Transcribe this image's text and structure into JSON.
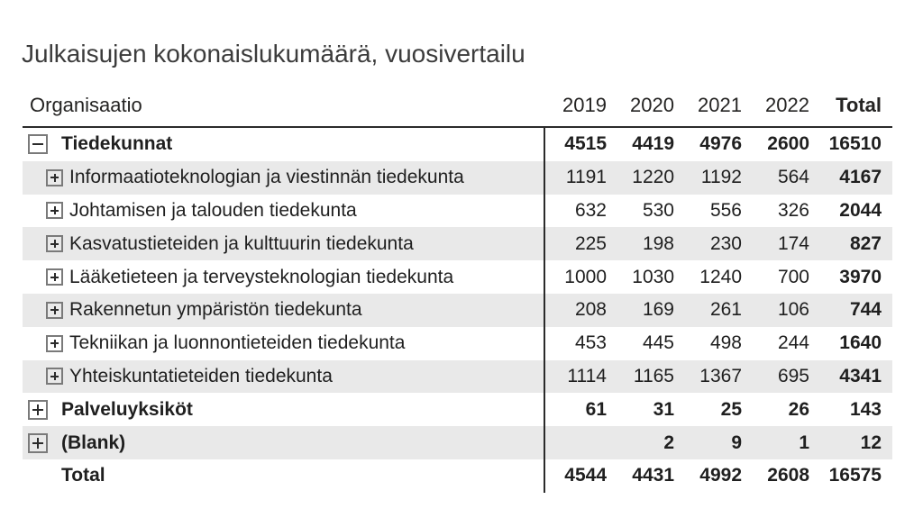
{
  "title": "Julkaisujen kokonaislukumäärä, vuosivertailu",
  "table": {
    "row_header": "Organisaatio",
    "columns": [
      "2019",
      "2020",
      "2021",
      "2022",
      "Total"
    ],
    "rows": [
      {
        "label": "Tiedekunnat",
        "level": 1,
        "icon": "minus",
        "bold": true,
        "values": [
          "4515",
          "4419",
          "4976",
          "2600",
          "16510"
        ]
      },
      {
        "label": "Informaatioteknologian ja viestinnän tiedekunta",
        "level": 2,
        "icon": "plus",
        "bold": false,
        "values": [
          "1191",
          "1220",
          "1192",
          "564",
          "4167"
        ]
      },
      {
        "label": "Johtamisen ja talouden tiedekunta",
        "level": 2,
        "icon": "plus",
        "bold": false,
        "values": [
          "632",
          "530",
          "556",
          "326",
          "2044"
        ]
      },
      {
        "label": "Kasvatustieteiden ja kulttuurin tiedekunta",
        "level": 2,
        "icon": "plus",
        "bold": false,
        "values": [
          "225",
          "198",
          "230",
          "174",
          "827"
        ]
      },
      {
        "label": "Lääketieteen ja terveysteknologian tiedekunta",
        "level": 2,
        "icon": "plus",
        "bold": false,
        "values": [
          "1000",
          "1030",
          "1240",
          "700",
          "3970"
        ]
      },
      {
        "label": "Rakennetun ympäristön tiedekunta",
        "level": 2,
        "icon": "plus",
        "bold": false,
        "values": [
          "208",
          "169",
          "261",
          "106",
          "744"
        ]
      },
      {
        "label": "Tekniikan ja luonnontieteiden tiedekunta",
        "level": 2,
        "icon": "plus",
        "bold": false,
        "values": [
          "453",
          "445",
          "498",
          "244",
          "1640"
        ]
      },
      {
        "label": "Yhteiskuntatieteiden tiedekunta",
        "level": 2,
        "icon": "plus",
        "bold": false,
        "values": [
          "1114",
          "1165",
          "1367",
          "695",
          "4341"
        ]
      },
      {
        "label": "Palveluyksiköt",
        "level": 1,
        "icon": "plus",
        "bold": true,
        "values": [
          "61",
          "31",
          "25",
          "26",
          "143"
        ]
      },
      {
        "label": "(Blank)",
        "level": 1,
        "icon": "plus",
        "bold": true,
        "values": [
          "",
          "2",
          "9",
          "1",
          "12"
        ]
      },
      {
        "label": "Total",
        "level": 1,
        "icon": "none",
        "bold": true,
        "values": [
          "4544",
          "4431",
          "4992",
          "2608",
          "16575"
        ]
      }
    ]
  },
  "colors": {
    "stripe": "#e9e9e9",
    "line": "#2b2b2b",
    "icon_border": "#7a7a7a",
    "body_text": "#1f1f1f",
    "title_text": "#3c3c3c"
  }
}
